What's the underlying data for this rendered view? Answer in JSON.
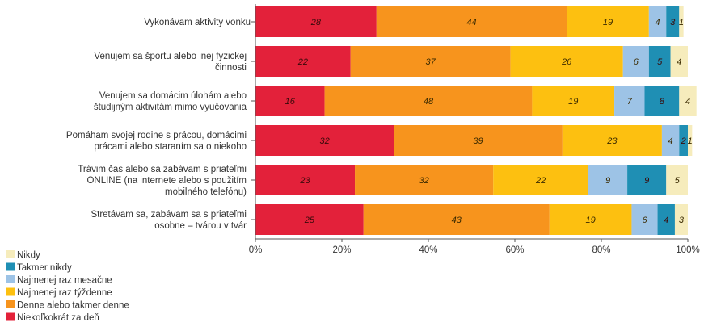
{
  "chart_data": {
    "type": "bar",
    "orientation": "horizontal",
    "stacked": true,
    "categories": [
      [
        "Vykonávam  aktivity vonku"
      ],
      [
        "Venujem sa športu alebo inej fyzickej",
        "činnosti"
      ],
      [
        "Venujem sa domácim úlohám alebo",
        "študijným aktivitám mimo vyučovania"
      ],
      [
        "Pomáham svojej rodine s prácou, domácimi",
        "prácami alebo staraním sa o niekoho"
      ],
      [
        "Trávim čas alebo sa zabávam s priateľmi",
        "ONLINE (na internete alebo s použitím",
        "mobilného telefónu)"
      ],
      [
        "Stretávam sa, zabávam sa s priateľmi",
        "osobne – tvárou v tvár"
      ]
    ],
    "series": [
      {
        "name": "Niekoľkokrát za deň",
        "color": "#e3213a",
        "values": [
          28,
          22,
          16,
          32,
          23,
          25
        ]
      },
      {
        "name": "Denne alebo takmer denne",
        "color": "#f7941d",
        "values": [
          44,
          37,
          48,
          39,
          32,
          43
        ]
      },
      {
        "name": "Najmenej raz týždenne",
        "color": "#fdc010",
        "values": [
          19,
          26,
          19,
          23,
          22,
          19
        ]
      },
      {
        "name": "Najmenej raz mesačne",
        "color": "#9dc3e6",
        "values": [
          4,
          6,
          7,
          4,
          9,
          6
        ]
      },
      {
        "name": "Takmer nikdy",
        "color": "#1f8fb4",
        "values": [
          3,
          5,
          8,
          2,
          9,
          4
        ]
      },
      {
        "name": "Nikdy",
        "color": "#f6ecbc",
        "values": [
          1,
          4,
          4,
          1,
          5,
          3
        ]
      }
    ],
    "data_labels": [
      [
        "28",
        "44",
        "19",
        "4",
        "3",
        "1"
      ],
      [
        "22",
        "37",
        "26",
        "6",
        "5",
        "4"
      ],
      [
        "16",
        "48",
        "19",
        "7",
        "8",
        "4"
      ],
      [
        "32",
        "39",
        "23",
        "4",
        "2",
        "1"
      ],
      [
        "23",
        "32",
        "22",
        "9",
        "9",
        "5"
      ],
      [
        "25",
        "43",
        "19",
        "6",
        "4",
        "3"
      ]
    ],
    "xlim": [
      0,
      100
    ],
    "x_ticks": [
      "0%",
      "20%",
      "40%",
      "60%",
      "80%",
      "100%"
    ],
    "legend_order": [
      "Nikdy",
      "Takmer nikdy",
      "Najmenej raz mesačne",
      "Najmenej raz týždenne",
      "Denne alebo takmer denne",
      "Niekoľkokrát za deň"
    ],
    "legend_position": "bottom-left",
    "grid": false,
    "title": "",
    "xlabel": "",
    "ylabel": ""
  }
}
